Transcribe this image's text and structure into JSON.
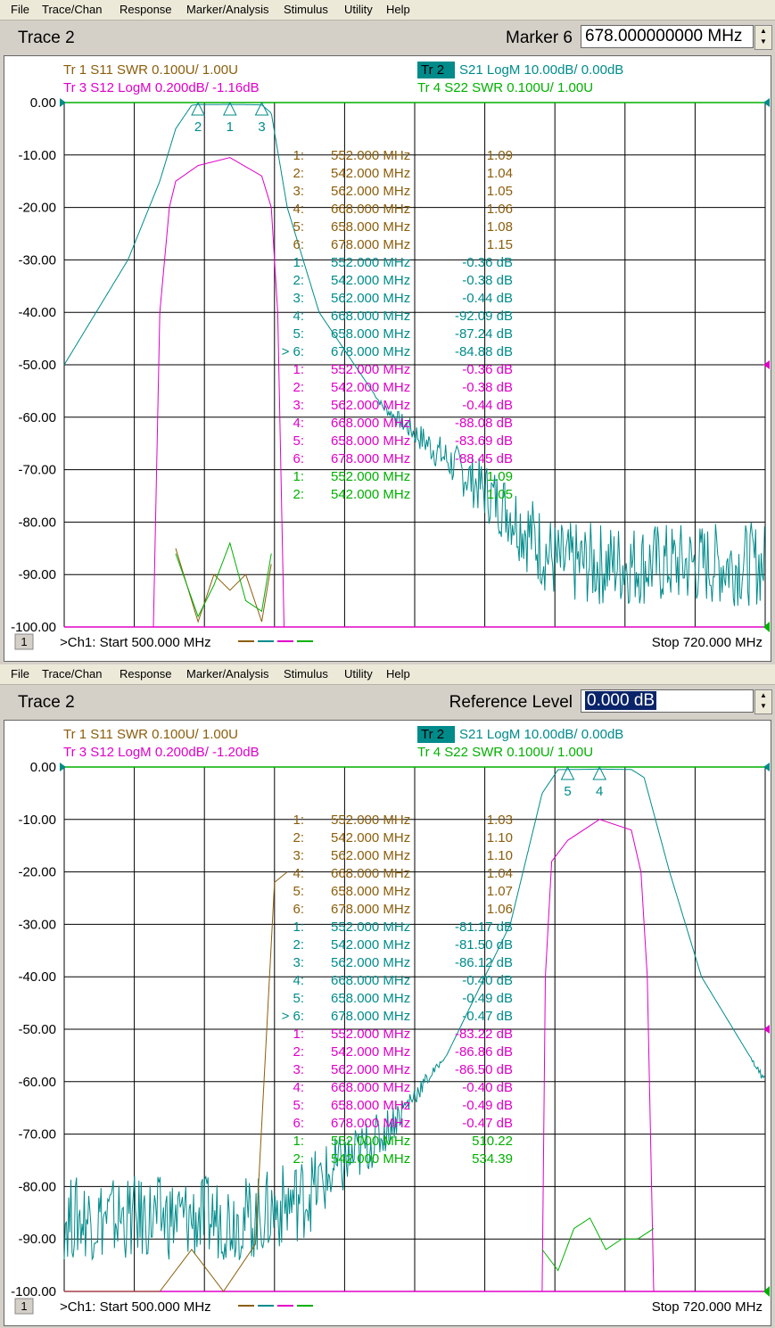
{
  "menu": [
    "File",
    "Trace/Chan",
    "Response",
    "Marker/Analysis",
    "Stimulus",
    "Utility",
    "Help"
  ],
  "colors": {
    "tr1": "#8b5e0b",
    "tr2": "#008b8b",
    "tr3": "#e000c8",
    "tr4": "#00b000",
    "grid": "#000000"
  },
  "panels": [
    {
      "title": "Trace 2",
      "control_label": "Marker 6",
      "control_value": "678.000000000 MHz",
      "control_highlight": false,
      "headers": {
        "tr1": "Tr  1   S11  SWR  0.100U/   1.00U",
        "tr2_badge": "Tr  2",
        "tr2": "S21  LogM  10.00dB/   0.00dB",
        "tr3": "Tr  3   S12  LogM  0.200dB/   -1.16dB",
        "tr4": "Tr  4    S22  SWR  0.100U/   1.00U"
      },
      "markers": [
        {
          "trace": "tr1",
          "idx": "1:",
          "freq": "552.000 MHz",
          "value": "1.09"
        },
        {
          "trace": "tr1",
          "idx": "2:",
          "freq": "542.000 MHz",
          "value": "1.04"
        },
        {
          "trace": "tr1",
          "idx": "3:",
          "freq": "562.000 MHz",
          "value": "1.05"
        },
        {
          "trace": "tr1",
          "idx": "4:",
          "freq": "668.000 MHz",
          "value": "1.06"
        },
        {
          "trace": "tr1",
          "idx": "5:",
          "freq": "658.000 MHz",
          "value": "1.08"
        },
        {
          "trace": "tr1",
          "idx": "6:",
          "freq": "678.000 MHz",
          "value": "1.15"
        },
        {
          "trace": "tr2",
          "idx": "1:",
          "freq": "552.000 MHz",
          "value": "-0.36  dB"
        },
        {
          "trace": "tr2",
          "idx": "2:",
          "freq": "542.000 MHz",
          "value": "-0.38  dB"
        },
        {
          "trace": "tr2",
          "idx": "3:",
          "freq": "562.000 MHz",
          "value": "-0.44  dB"
        },
        {
          "trace": "tr2",
          "idx": "4:",
          "freq": "668.000 MHz",
          "value": "-92.09  dB"
        },
        {
          "trace": "tr2",
          "idx": "5:",
          "freq": "658.000 MHz",
          "value": "-87.24  dB"
        },
        {
          "trace": "tr2",
          "idx": "> 6:",
          "freq": "678.000 MHz",
          "value": "-84.88  dB"
        },
        {
          "trace": "tr3",
          "idx": "1:",
          "freq": "552.000 MHz",
          "value": "-0.36  dB"
        },
        {
          "trace": "tr3",
          "idx": "2:",
          "freq": "542.000 MHz",
          "value": "-0.38  dB"
        },
        {
          "trace": "tr3",
          "idx": "3:",
          "freq": "562.000 MHz",
          "value": "-0.44  dB"
        },
        {
          "trace": "tr3",
          "idx": "4:",
          "freq": "668.000 MHz",
          "value": "-88.08  dB"
        },
        {
          "trace": "tr3",
          "idx": "5:",
          "freq": "658.000 MHz",
          "value": "-83.69  dB"
        },
        {
          "trace": "tr3",
          "idx": "6:",
          "freq": "678.000 MHz",
          "value": "-88.45  dB"
        },
        {
          "trace": "tr4",
          "idx": "1:",
          "freq": "552.000 MHz",
          "value": "1.09"
        },
        {
          "trace": "tr4",
          "idx": "2:",
          "freq": "542.000 MHz",
          "value": "1.05"
        }
      ],
      "footer": {
        "channel": "1",
        "start": ">Ch1: Start  500.000 MHz",
        "stop": "Stop   720.000 MHz"
      }
    },
    {
      "title": "Trace 2",
      "control_label": "Reference Level",
      "control_value": "0.000 dB",
      "control_highlight": true,
      "headers": {
        "tr1": "Tr  1   S11  SWR  0.100U/   1.00U",
        "tr2_badge": "Tr  2",
        "tr2": "S21  LogM  10.00dB/   0.00dB",
        "tr3": "Tr  3   S12  LogM  0.200dB/   -1.20dB",
        "tr4": "Tr  4    S22  SWR  0.100U/   1.00U"
      },
      "markers": [
        {
          "trace": "tr1",
          "idx": "1:",
          "freq": "552.000 MHz",
          "value": "1.03"
        },
        {
          "trace": "tr1",
          "idx": "2:",
          "freq": "542.000 MHz",
          "value": "1.10"
        },
        {
          "trace": "tr1",
          "idx": "3:",
          "freq": "562.000 MHz",
          "value": "1.10"
        },
        {
          "trace": "tr1",
          "idx": "4:",
          "freq": "668.000 MHz",
          "value": "1.04"
        },
        {
          "trace": "tr1",
          "idx": "5:",
          "freq": "658.000 MHz",
          "value": "1.07"
        },
        {
          "trace": "tr1",
          "idx": "6:",
          "freq": "678.000 MHz",
          "value": "1.06"
        },
        {
          "trace": "tr2",
          "idx": "1:",
          "freq": "552.000 MHz",
          "value": "-81.17  dB"
        },
        {
          "trace": "tr2",
          "idx": "2:",
          "freq": "542.000 MHz",
          "value": "-81.50  dB"
        },
        {
          "trace": "tr2",
          "idx": "3:",
          "freq": "562.000 MHz",
          "value": "-86.12  dB"
        },
        {
          "trace": "tr2",
          "idx": "4:",
          "freq": "668.000 MHz",
          "value": "-0.40  dB"
        },
        {
          "trace": "tr2",
          "idx": "5:",
          "freq": "658.000 MHz",
          "value": "-0.49  dB"
        },
        {
          "trace": "tr2",
          "idx": "> 6:",
          "freq": "678.000 MHz",
          "value": "-0.47  dB"
        },
        {
          "trace": "tr3",
          "idx": "1:",
          "freq": "552.000 MHz",
          "value": "-83.22  dB"
        },
        {
          "trace": "tr3",
          "idx": "2:",
          "freq": "542.000 MHz",
          "value": "-86.86  dB"
        },
        {
          "trace": "tr3",
          "idx": "3:",
          "freq": "562.000 MHz",
          "value": "-86.50  dB"
        },
        {
          "trace": "tr3",
          "idx": "4:",
          "freq": "668.000 MHz",
          "value": "-0.40  dB"
        },
        {
          "trace": "tr3",
          "idx": "5:",
          "freq": "658.000 MHz",
          "value": "-0.49  dB"
        },
        {
          "trace": "tr3",
          "idx": "6:",
          "freq": "678.000 MHz",
          "value": "-0.47  dB"
        },
        {
          "trace": "tr4",
          "idx": "1:",
          "freq": "552.000 MHz",
          "value": "510.22"
        },
        {
          "trace": "tr4",
          "idx": "2:",
          "freq": "542.000 MHz",
          "value": "534.39"
        }
      ],
      "footer": {
        "channel": "1",
        "start": ">Ch1: Start  500.000 MHz",
        "stop": "Stop   720.000 MHz"
      }
    }
  ],
  "chart_data": [
    {
      "type": "line",
      "x_range_mhz": [
        500,
        720
      ],
      "ylim": [
        -100,
        0
      ],
      "y_ticks": [
        "0.00",
        "-10.00",
        "-20.00",
        "-30.00",
        "-40.00",
        "-50.00",
        "-60.00",
        "-70.00",
        "-80.00",
        "-90.00",
        "-100.00"
      ],
      "grid": true,
      "series": [
        {
          "name": "S21",
          "trace": "tr2",
          "x": [
            500,
            520,
            530,
            535,
            540,
            542,
            552,
            562,
            565,
            570,
            580,
            600,
            620,
            640,
            650,
            655,
            660,
            680,
            700,
            720
          ],
          "y": [
            -50,
            -30,
            -15,
            -5,
            -0.5,
            -0.38,
            -0.36,
            -0.44,
            -2,
            -20,
            -40,
            -58,
            -68,
            -78,
            -85,
            -88,
            -88,
            -88,
            -88,
            -88
          ]
        },
        {
          "name": "S12",
          "trace": "tr3",
          "x": [
            528,
            530,
            533,
            535,
            542,
            552,
            562,
            565,
            567,
            569
          ],
          "y": [
            -100,
            -40,
            -20,
            -15,
            -12,
            -10.5,
            -14,
            -20,
            -40,
            -100
          ]
        },
        {
          "name": "S11",
          "trace": "tr1",
          "x": [
            535,
            542,
            547,
            552,
            557,
            562,
            565
          ],
          "y": [
            -85,
            -99,
            -90,
            -93,
            -90,
            -99,
            -88
          ]
        },
        {
          "name": "S22",
          "trace": "tr4",
          "x": [
            535,
            542,
            547,
            552,
            557,
            562,
            565
          ],
          "y": [
            -86,
            -98,
            -92,
            -84,
            -95,
            -97,
            -86
          ]
        }
      ],
      "markers_x_mhz": {
        "1": 552,
        "2": 542,
        "3": 562,
        "4": 668,
        "5": 658,
        "6": 678
      }
    },
    {
      "type": "line",
      "x_range_mhz": [
        500,
        720
      ],
      "ylim": [
        -100,
        0
      ],
      "y_ticks": [
        "0.00",
        "-10.00",
        "-20.00",
        "-30.00",
        "-40.00",
        "-50.00",
        "-60.00",
        "-70.00",
        "-80.00",
        "-90.00",
        "-100.00"
      ],
      "grid": true,
      "series": [
        {
          "name": "S21",
          "trace": "tr2",
          "x": [
            500,
            560,
            575,
            600,
            620,
            640,
            650,
            655,
            658,
            668,
            678,
            682,
            690,
            700,
            720
          ],
          "y": [
            -86,
            -86,
            -82,
            -70,
            -55,
            -30,
            -5,
            -0.5,
            -0.49,
            -0.4,
            -0.47,
            -2,
            -20,
            -40,
            -60
          ],
          "note_noise_below_x": 575
        },
        {
          "name": "S12",
          "trace": "tr3",
          "x": [
            650,
            651,
            653,
            658,
            668,
            678,
            681,
            683,
            685
          ],
          "y": [
            -100,
            -40,
            -18,
            -14,
            -10,
            -12,
            -20,
            -40,
            -100
          ]
        },
        {
          "name": "S11",
          "trace": "tr1",
          "x": [
            500,
            530,
            540,
            550,
            560,
            566,
            570
          ],
          "y": [
            -100,
            -100,
            -92,
            -100,
            -91,
            -22,
            -20
          ]
        },
        {
          "name": "S22",
          "trace": "tr4",
          "x": [
            650,
            655,
            660,
            665,
            670,
            675,
            680,
            685
          ],
          "y": [
            -92,
            -96,
            -88,
            -86,
            -92,
            -90,
            -90,
            -88
          ]
        }
      ],
      "markers_x_mhz": {
        "1": 552,
        "2": 542,
        "3": 562,
        "4": 668,
        "5": 658,
        "6": 678
      }
    }
  ]
}
